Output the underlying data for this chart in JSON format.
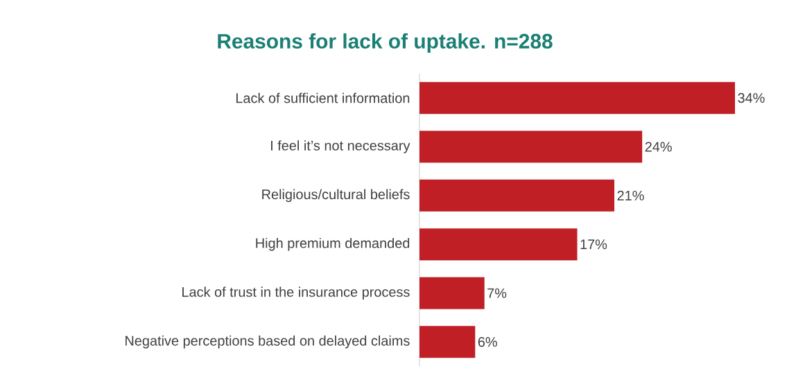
{
  "chart_data": {
    "type": "bar",
    "orientation": "horizontal",
    "title": "Reasons for lack of uptake. n=288",
    "categories": [
      "Lack of sufficient information",
      "I feel it’s not necessary",
      "Religious/cultural beliefs",
      "High premium demanded",
      "Lack of trust in the insurance process",
      "Negative perceptions based on delayed claims"
    ],
    "values": [
      34,
      24,
      21,
      17,
      7,
      6
    ],
    "value_labels": [
      "34%",
      "24%",
      "21%",
      "17%",
      "7%",
      "6%"
    ],
    "color": "#c01f26",
    "xlim": [
      0,
      34
    ]
  }
}
